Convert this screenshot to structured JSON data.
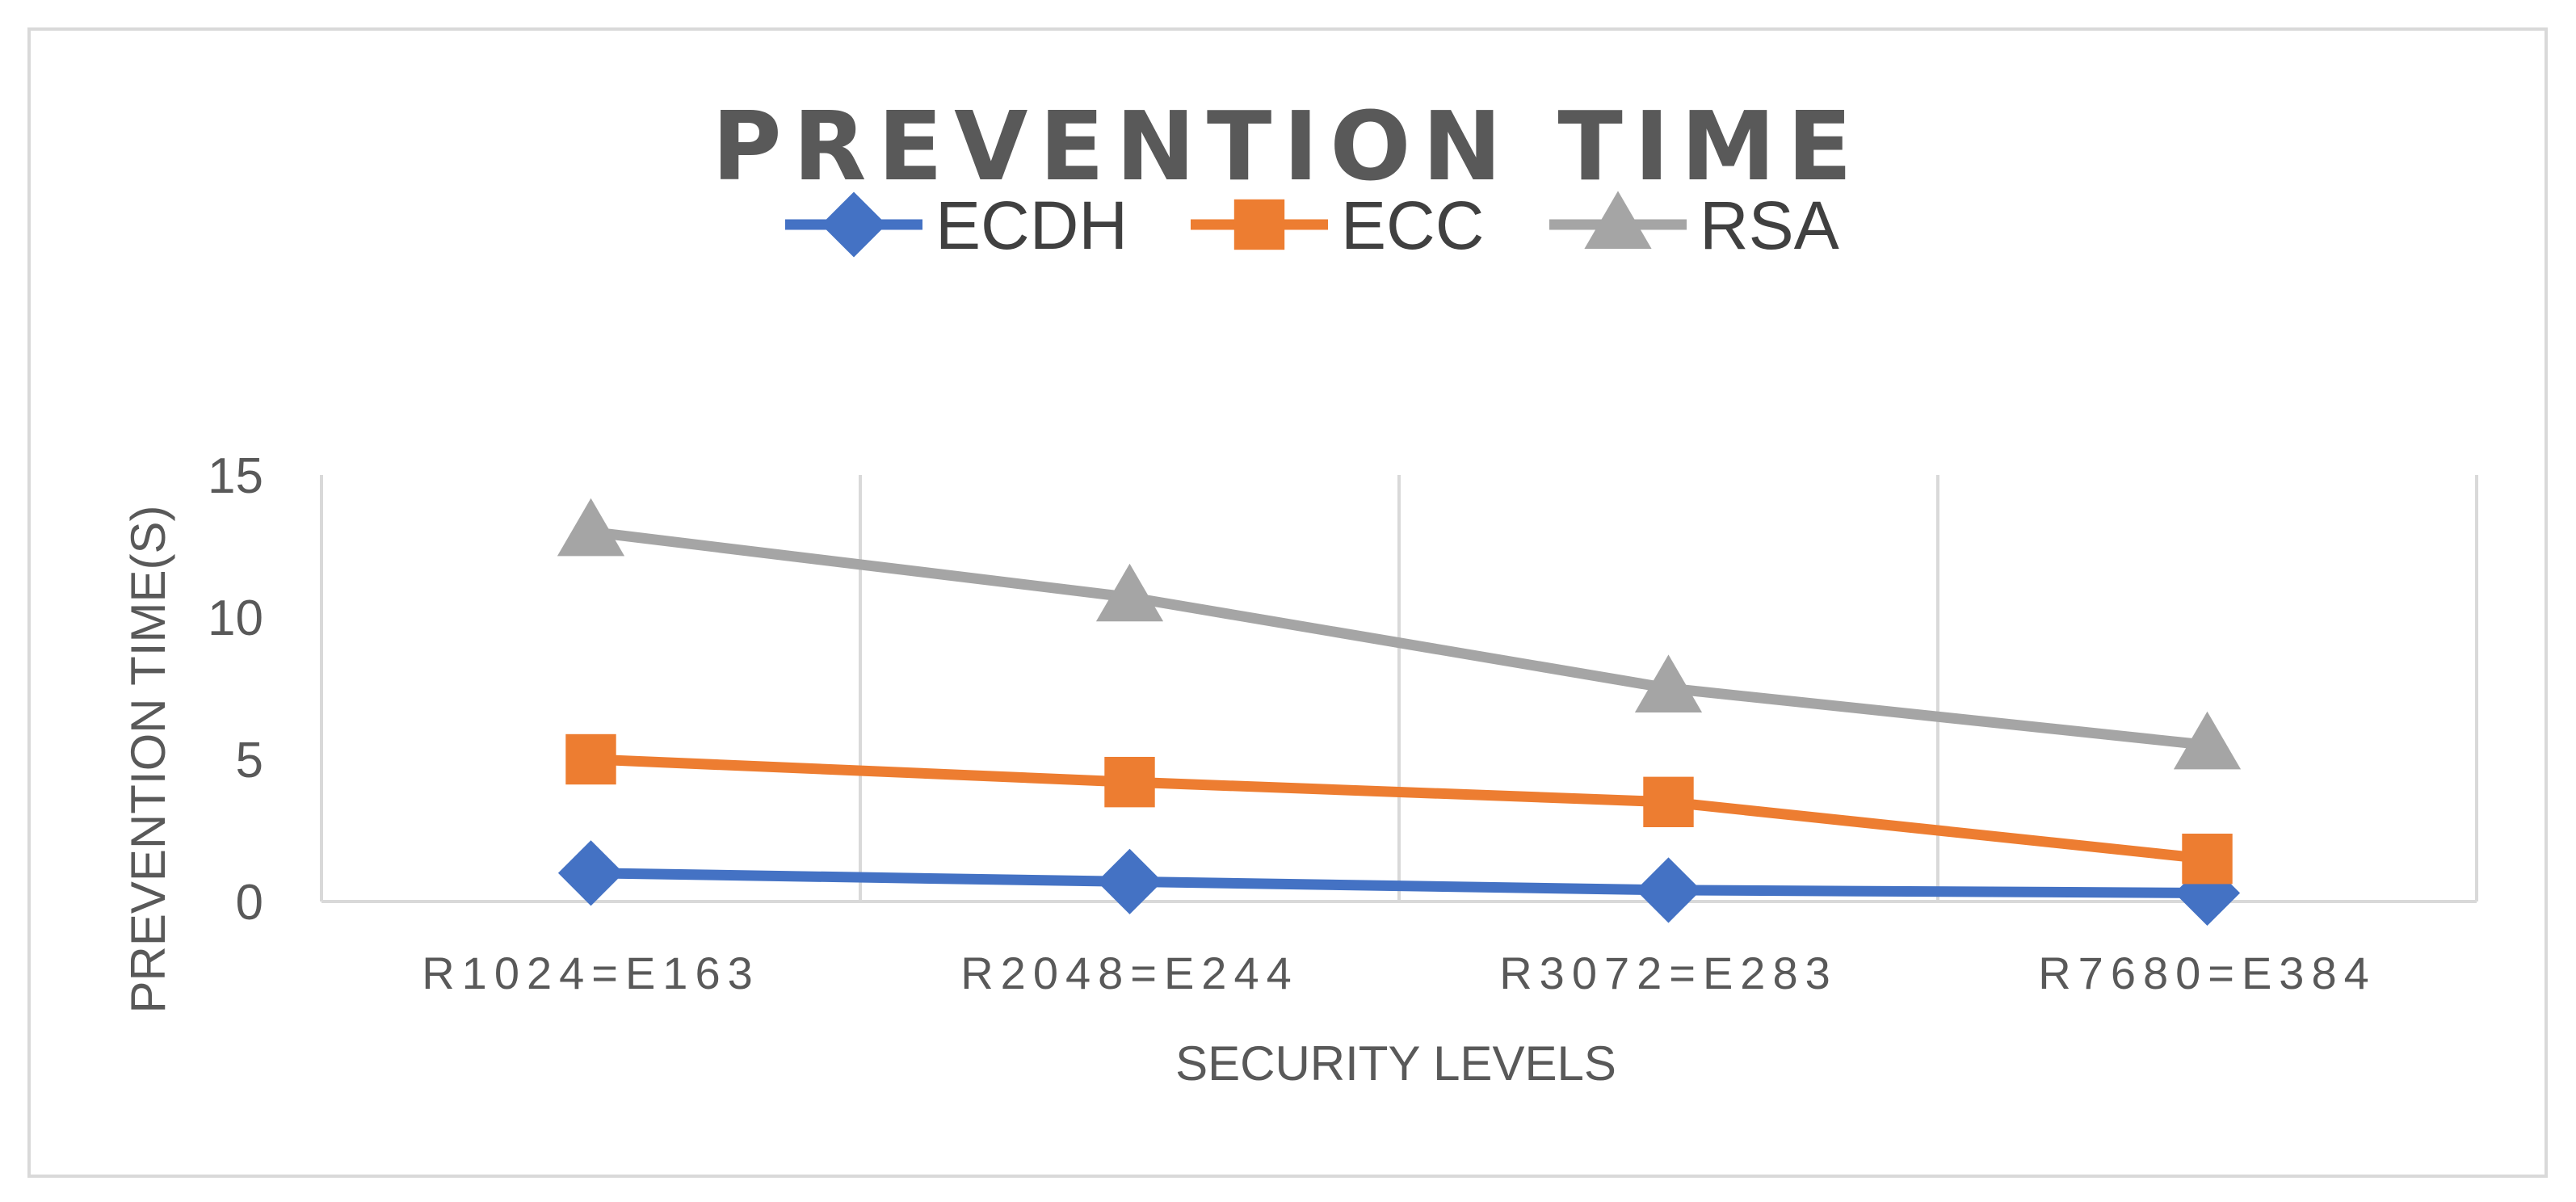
{
  "chart_data": {
    "type": "line",
    "title": "PREVENTION TIME",
    "xlabel": "SECURITY LEVELS",
    "ylabel": "PREVENTION TIME(S)",
    "categories": [
      "R1024=E163",
      "R2048=E244",
      "R3072=E283",
      "R7680=E384"
    ],
    "ylim": [
      0,
      15
    ],
    "yticks": [
      0,
      5,
      10,
      15
    ],
    "grid": "vertical",
    "legend_position": "top",
    "series": [
      {
        "name": "ECDH",
        "values": [
          1.0,
          0.7,
          0.4,
          0.3
        ],
        "color": "#4472c4",
        "marker": "diamond"
      },
      {
        "name": "ECC",
        "values": [
          5.0,
          4.2,
          3.5,
          1.5
        ],
        "color": "#ed7d31",
        "marker": "square"
      },
      {
        "name": "RSA",
        "values": [
          13.0,
          10.7,
          7.5,
          5.5
        ],
        "color": "#a5a5a5",
        "marker": "triangle"
      }
    ]
  }
}
